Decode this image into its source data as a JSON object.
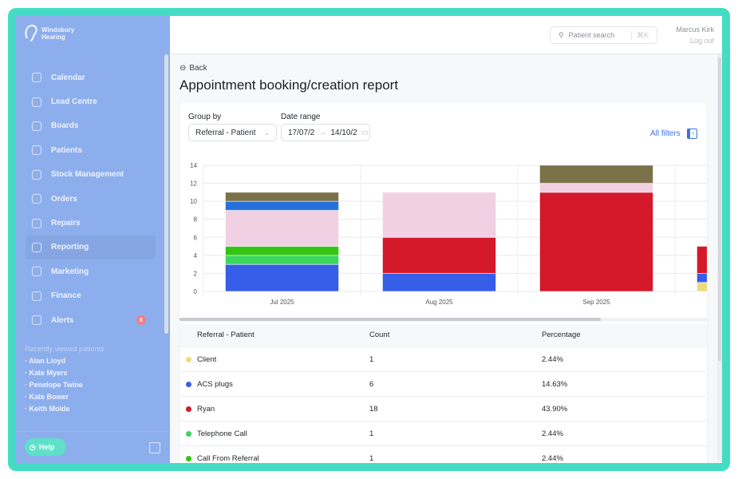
{
  "brand": {
    "name_line1": "Windsbury",
    "name_line2": "Hearing"
  },
  "sidebar": {
    "items": [
      {
        "label": "Calendar",
        "icon": "calendar-icon"
      },
      {
        "label": "Lead Centre",
        "icon": "headset-icon"
      },
      {
        "label": "Boards",
        "icon": "board-icon"
      },
      {
        "label": "Patients",
        "icon": "patient-icon"
      },
      {
        "label": "Stock Management",
        "icon": "clipboard-icon"
      },
      {
        "label": "Orders",
        "icon": "box-icon"
      },
      {
        "label": "Repairs",
        "icon": "wrench-icon"
      },
      {
        "label": "Reporting",
        "icon": "chart-pie-icon",
        "active": true
      },
      {
        "label": "Marketing",
        "icon": "mail-icon"
      },
      {
        "label": "Finance",
        "icon": "card-icon"
      },
      {
        "label": "Alerts",
        "icon": "bell-icon",
        "badge": "6"
      }
    ],
    "recent_title": "Recently viewed patients",
    "recent": [
      "Alan Lloyd",
      "Kate Myers",
      "Penelope Twine",
      "Kate Bower",
      "Keith Molde"
    ],
    "help_label": "Help"
  },
  "header": {
    "search_placeholder": "Patient search",
    "search_shortcut": "⌘K",
    "user_name": "Marcus Kirk",
    "logout": "Log out"
  },
  "page": {
    "back": "Back",
    "title": "Appointment booking/creation report"
  },
  "filters": {
    "group_by_label": "Group by",
    "group_by_value": "Referral - Patient",
    "date_range_label": "Date range",
    "date_from": "17/07/2",
    "date_to": "14/10/2",
    "all_filters": "All filters"
  },
  "chart_data": {
    "type": "bar",
    "stacked": true,
    "categories": [
      "Jul 2025",
      "Aug 2025",
      "Sep 2025",
      ""
    ],
    "ylim": [
      0,
      14
    ],
    "yticks": [
      0,
      2,
      4,
      6,
      8,
      10,
      12,
      14
    ],
    "series": [
      {
        "name": "Client",
        "color": "#ecdd78",
        "values": [
          0,
          0,
          0,
          1
        ]
      },
      {
        "name": "ACS plugs",
        "color": "#365ee8",
        "values": [
          3,
          2,
          0,
          1
        ]
      },
      {
        "name": "Telephone Call",
        "color": "#3dd65c",
        "values": [
          1,
          0,
          0,
          0
        ]
      },
      {
        "name": "Call From Referral",
        "color": "#33c414",
        "values": [
          1,
          0,
          0,
          0
        ]
      },
      {
        "name": "Ryan",
        "color": "#d4192a",
        "values": [
          0,
          4,
          11,
          3
        ]
      },
      {
        "name": null,
        "color": "#f1d0e4",
        "values": [
          4,
          5,
          1,
          0
        ]
      },
      {
        "name": null,
        "color": "#2670dc",
        "values": [
          1,
          0,
          0,
          0
        ]
      },
      {
        "name": null,
        "color": "#7a7149",
        "values": [
          1,
          0,
          2,
          0
        ]
      }
    ]
  },
  "table": {
    "headers": [
      "Referral - Patient",
      "Count",
      "Percentage"
    ],
    "rows": [
      {
        "name": "Client",
        "count": "1",
        "pct": "2.44%",
        "color": "#ecdd78"
      },
      {
        "name": "ACS plugs",
        "count": "6",
        "pct": "14.63%",
        "color": "#365ee8"
      },
      {
        "name": "Ryan",
        "count": "18",
        "pct": "43.90%",
        "color": "#d4192a"
      },
      {
        "name": "Telephone Call",
        "count": "1",
        "pct": "2.44%",
        "color": "#3dd65c"
      },
      {
        "name": "Call From Referral",
        "count": "1",
        "pct": "2.44%",
        "color": "#33c414"
      }
    ]
  }
}
